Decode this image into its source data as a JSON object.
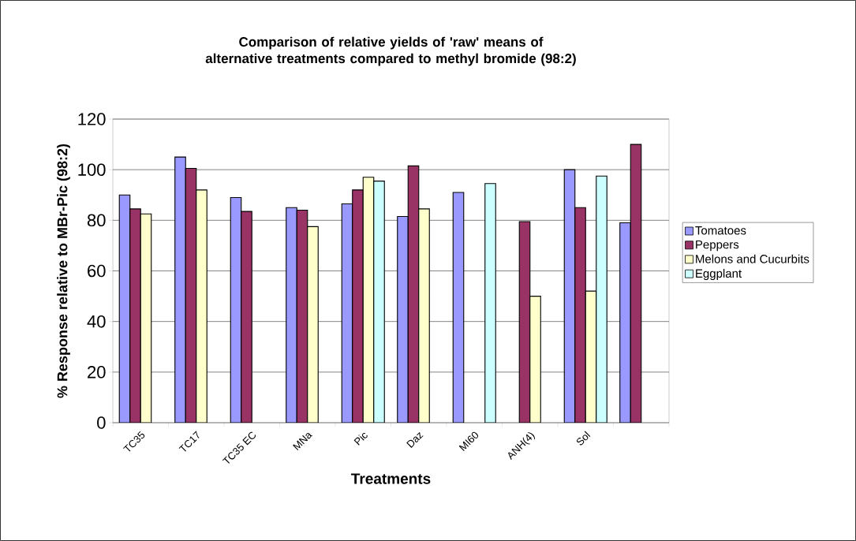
{
  "chart_data": {
    "type": "bar",
    "title": "Comparison of relative yields of 'raw' means of alternative treatments compared to methyl bromide (98:2)",
    "xlabel": "Treatments",
    "ylabel": "% Response relative to MBr-Pic (98:2)",
    "categories": [
      "TC35",
      "TC17",
      "TC35 EC",
      "MNa",
      "Pic",
      "Daz",
      "MI60",
      "ANH(4)",
      "Sol",
      null
    ],
    "series": [
      {
        "name": "Tomatoes",
        "color": "#9999ff",
        "values": [
          90,
          105,
          89,
          85,
          86.5,
          81.5,
          91,
          null,
          100,
          79
        ]
      },
      {
        "name": "Peppers",
        "color": "#993366",
        "values": [
          84.5,
          100.5,
          83.5,
          84,
          92,
          101.5,
          null,
          79.5,
          85,
          110
        ]
      },
      {
        "name": "Melons and Cucurbits",
        "color": "#ffffcc",
        "values": [
          82.5,
          92,
          null,
          77.5,
          97,
          84.5,
          null,
          50,
          52,
          null
        ]
      },
      {
        "name": "Eggplant",
        "color": "#ccffff",
        "values": [
          null,
          null,
          null,
          null,
          95.5,
          null,
          94.5,
          null,
          97.5,
          null
        ]
      }
    ],
    "ylim": [
      0,
      120
    ],
    "yticks": [
      0,
      20,
      40,
      60,
      80,
      100,
      120
    ],
    "grid": "y",
    "legend": "right"
  }
}
